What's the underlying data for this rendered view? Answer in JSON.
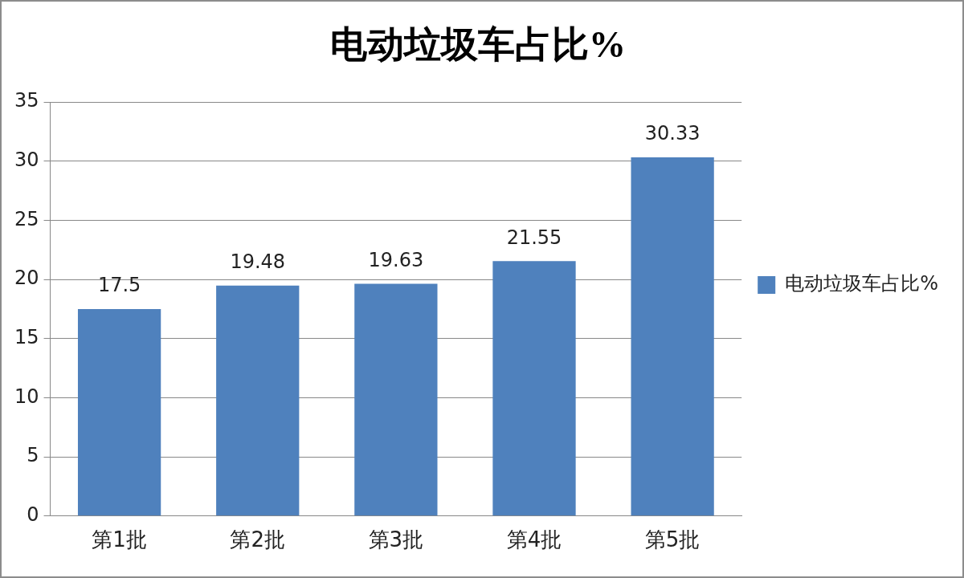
{
  "chart_data": {
    "type": "bar",
    "title": "电动垃圾车占比%",
    "categories": [
      "第1批",
      "第2批",
      "第3批",
      "第4批",
      "第5批"
    ],
    "series": [
      {
        "name": "电动垃圾车占比%",
        "color": "#4f81bd",
        "values": [
          17.5,
          19.48,
          19.63,
          21.55,
          30.33
        ]
      }
    ],
    "ylim": [
      0,
      35
    ],
    "yticks": [
      0,
      5,
      10,
      15,
      20,
      25,
      30,
      35
    ],
    "grid": "y",
    "legend": "right",
    "data_labels": true
  }
}
